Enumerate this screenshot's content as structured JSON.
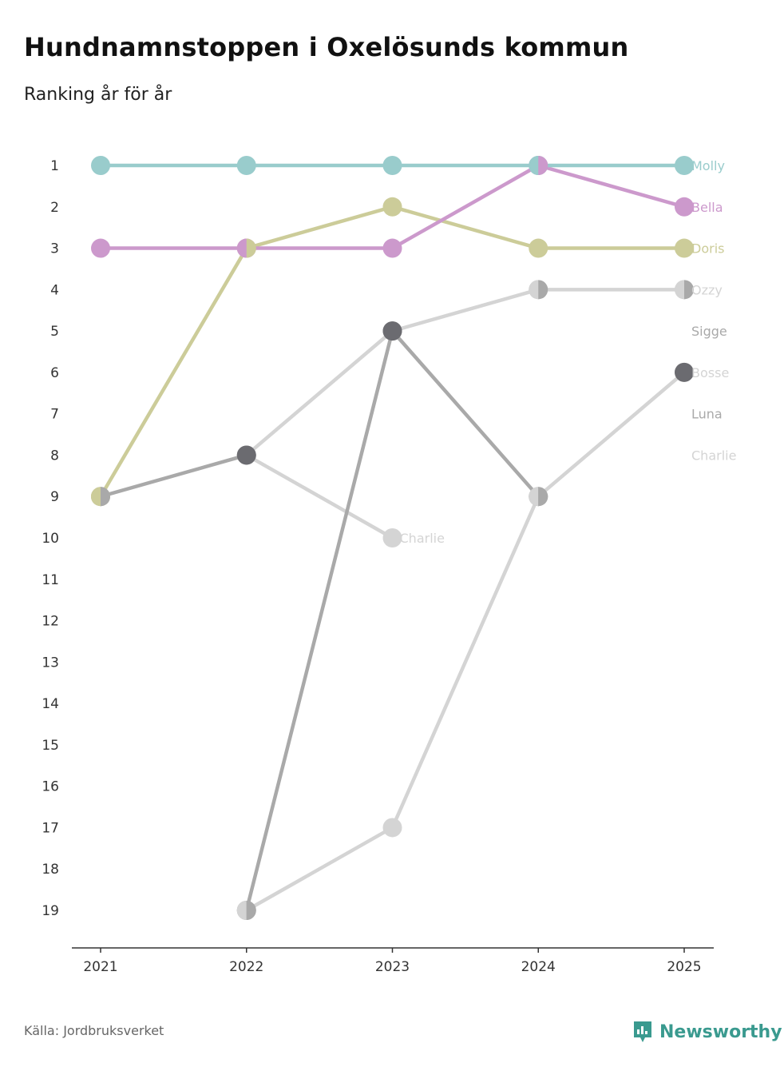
{
  "title": "Hundnamnstoppen i Oxelösunds kommun",
  "subtitle": "Ranking år för år",
  "source": "Källa: Jordbruksverket",
  "brand": "Newsworthy",
  "colors": {
    "brand": "#3a9a8f",
    "axis": "#333333"
  },
  "chart_data": {
    "type": "line",
    "title": "Hundnamnstoppen i Oxelösunds kommun",
    "subtitle": "Ranking år för år",
    "xlabel": "",
    "ylabel": "",
    "x": [
      "2021",
      "2022",
      "2023",
      "2024",
      "2025"
    ],
    "y_ticks": [
      1,
      2,
      3,
      4,
      5,
      6,
      7,
      8,
      9,
      10,
      11,
      12,
      13,
      14,
      15,
      16,
      17,
      18,
      19
    ],
    "ylim": [
      1,
      19
    ],
    "y_reversed": true,
    "grid": false,
    "series": [
      {
        "name": "Charlie",
        "color": "#d4d4d4",
        "values": [
          null,
          8,
          10,
          null,
          null
        ],
        "label_x": "2023",
        "label_y": 10
      },
      {
        "name": "Bosse",
        "color": "#d4d4d4",
        "values": [
          null,
          19,
          17,
          9,
          6
        ],
        "label_x": "2025",
        "label_y": 6
      },
      {
        "name": "Ozzy",
        "color": "#d4d4d4",
        "values": [
          null,
          8,
          5,
          4,
          4
        ],
        "label_x": "2025",
        "label_y": 4
      },
      {
        "name": "Luna",
        "color": "#a9a9a9",
        "values": [
          9,
          8,
          null,
          null,
          null
        ],
        "label_x": "2025",
        "label_y": 7
      },
      {
        "name": "Sigge",
        "color": "#a9a9a9",
        "values": [
          null,
          19,
          5,
          9,
          null
        ],
        "label_x": "2025",
        "label_y": 5
      },
      {
        "name": "Charlie",
        "color": "#d4d4d4",
        "values": [
          null,
          null,
          null,
          null,
          null
        ],
        "label_x": "2025",
        "label_y": 8
      },
      {
        "name": "Doris",
        "color": "#cccc99",
        "values": [
          9,
          3,
          2,
          3,
          3
        ],
        "label_x": "2025",
        "label_y": 3
      },
      {
        "name": "Bella",
        "color": "#cc99cc",
        "values": [
          3,
          3,
          3,
          1,
          2
        ],
        "label_x": "2025",
        "label_y": 2
      },
      {
        "name": "Molly",
        "color": "#99cccc",
        "values": [
          1,
          1,
          1,
          1,
          1
        ],
        "label_x": "2025",
        "label_y": 1
      }
    ],
    "dark_dots": [
      {
        "x": "2022",
        "y": 8,
        "color": "#6b6b70"
      },
      {
        "x": "2023",
        "y": 5,
        "color": "#6b6b70"
      },
      {
        "x": "2025",
        "y": 6,
        "color": "#6b6b70"
      }
    ],
    "split_dots": [
      {
        "x": "2021",
        "y": 9,
        "left": "#cccc99",
        "right": "#a9a9a9"
      },
      {
        "x": "2022",
        "y": 3,
        "left": "#cc99cc",
        "right": "#cccc99"
      },
      {
        "x": "2022",
        "y": 19,
        "left": "#d4d4d4",
        "right": "#a9a9a9"
      },
      {
        "x": "2024",
        "y": 1,
        "left": "#99cccc",
        "right": "#cc99cc"
      },
      {
        "x": "2024",
        "y": 4,
        "left": "#d4d4d4",
        "right": "#a9a9a9"
      },
      {
        "x": "2024",
        "y": 9,
        "left": "#d4d4d4",
        "right": "#a9a9a9"
      },
      {
        "x": "2025",
        "y": 4,
        "left": "#d4d4d4",
        "right": "#a9a9a9"
      }
    ]
  }
}
